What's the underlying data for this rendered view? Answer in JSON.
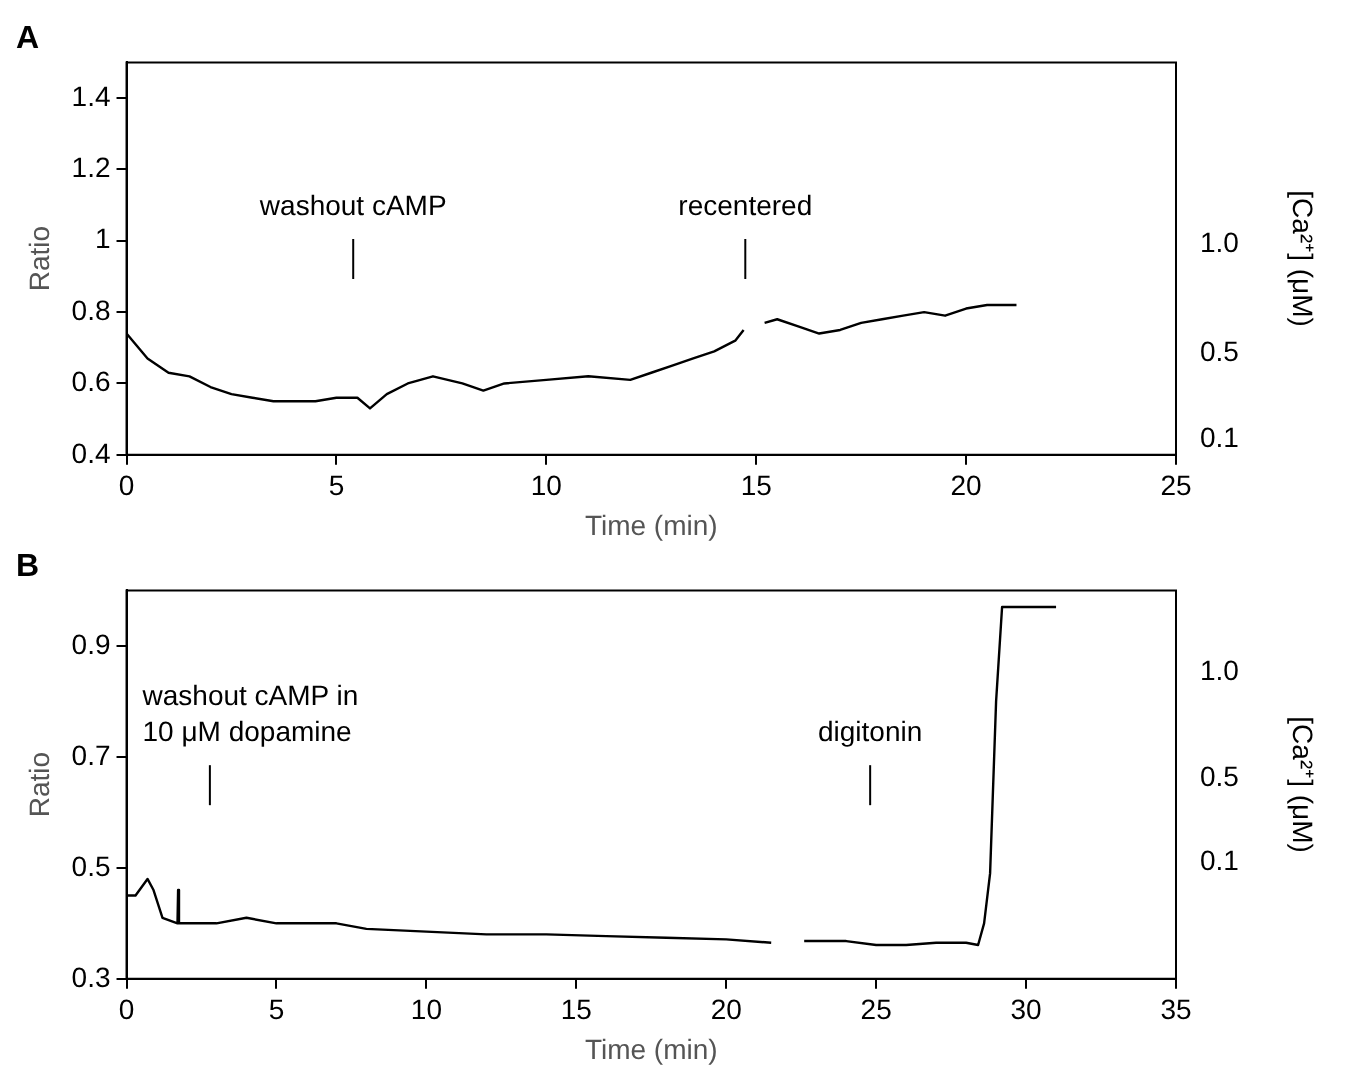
{
  "chart_data": [
    {
      "type": "line",
      "title": "A",
      "xlabel": "Time (min)",
      "ylabel": "Ratio",
      "y2label": "[Ca²⁺] (μM)",
      "xlim": [
        0,
        25
      ],
      "xticks": [
        0,
        5,
        10,
        15,
        20,
        25
      ],
      "ylim": [
        0.4,
        1.5
      ],
      "yticks": [
        0.4,
        0.6,
        0.8,
        1.0,
        1.2,
        1.4
      ],
      "y2lim": [
        0.03,
        1.84
      ],
      "y2ticks": [
        {
          "value": 0.1,
          "label": "0.1"
        },
        {
          "value": 0.5,
          "label": "0.5"
        },
        {
          "value": 1,
          "label": "1.0"
        }
      ],
      "grid": false,
      "legend": false,
      "marker": "none",
      "line_style": "solid",
      "ref_lines": [
        {
          "axis": "x",
          "value": 5.4,
          "label": "washout cAMP"
        },
        {
          "axis": "x",
          "value": 14.74,
          "label": "recentered"
        }
      ],
      "series": [
        {
          "color": "#000000",
          "x": [
            0,
            0.5,
            1,
            1.5,
            2,
            2.5,
            3,
            3.5,
            4,
            4.5,
            5,
            5.5,
            5.8,
            6.2,
            6.7,
            7.3,
            8,
            8.5,
            9,
            10,
            11,
            12,
            12.5,
            13,
            13.5,
            14,
            14.5,
            14.7,
            14.95,
            15.2,
            15.5,
            16,
            16.5,
            17,
            17.5,
            18,
            18.5,
            19,
            19.5,
            20,
            20.5,
            21.2
          ],
          "values": [
            0.74,
            0.67,
            0.63,
            0.62,
            0.59,
            0.57,
            0.56,
            0.55,
            0.55,
            0.55,
            0.56,
            0.56,
            0.53,
            0.57,
            0.6,
            0.62,
            0.6,
            0.58,
            0.6,
            0.61,
            0.62,
            0.61,
            0.63,
            0.65,
            0.67,
            0.69,
            0.72,
            0.75,
            null,
            0.77,
            0.78,
            0.76,
            0.74,
            0.75,
            0.77,
            0.78,
            0.79,
            0.8,
            0.79,
            0.81,
            0.82,
            0.82
          ]
        }
      ]
    },
    {
      "type": "line",
      "title": "B",
      "xlabel": "Time (min)",
      "ylabel": "Ratio",
      "y2label": "[Ca²⁺] (μM)",
      "xlim": [
        0,
        35
      ],
      "xticks": [
        0,
        5,
        10,
        15,
        20,
        25,
        30,
        35
      ],
      "ylim": [
        0.3,
        1.0
      ],
      "yticks": [
        0.3,
        0.5,
        0.7,
        0.9
      ],
      "y2lim": [
        -0.45,
        1.39
      ],
      "y2ticks": [
        {
          "value": 0.1,
          "label": "0.1"
        },
        {
          "value": 0.5,
          "label": "0.5"
        },
        {
          "value": 1,
          "label": "1.0"
        }
      ],
      "grid": false,
      "legend": false,
      "marker": "none",
      "line_style": "solid",
      "ref_lines": [
        {
          "axis": "x",
          "value": 2.78,
          "label": "washout cAMP in\n10 μM dopamine"
        },
        {
          "axis": "x",
          "value": 24.8,
          "label": "digitonin"
        }
      ],
      "series": [
        {
          "color": "#000000",
          "x": [
            0,
            0.3,
            0.7,
            0.9,
            1.2,
            1.7,
            1.72,
            1.75,
            3,
            4,
            5,
            6,
            7,
            8,
            10,
            12,
            14,
            16,
            18,
            20,
            21.5,
            22,
            22.6,
            24,
            25,
            26,
            27,
            28,
            28.4,
            28.6,
            28.8,
            29,
            29.2,
            31
          ],
          "values": [
            0.45,
            0.45,
            0.48,
            0.46,
            0.41,
            0.4,
            0.46,
            0.4,
            0.4,
            0.41,
            0.4,
            0.4,
            0.4,
            0.39,
            0.385,
            0.38,
            0.38,
            0.377,
            0.374,
            0.371,
            0.365,
            null,
            0.368,
            0.368,
            0.361,
            0.361,
            0.365,
            0.365,
            0.361,
            0.4,
            0.49,
            0.8,
            0.97,
            0.97
          ]
        }
      ]
    }
  ]
}
